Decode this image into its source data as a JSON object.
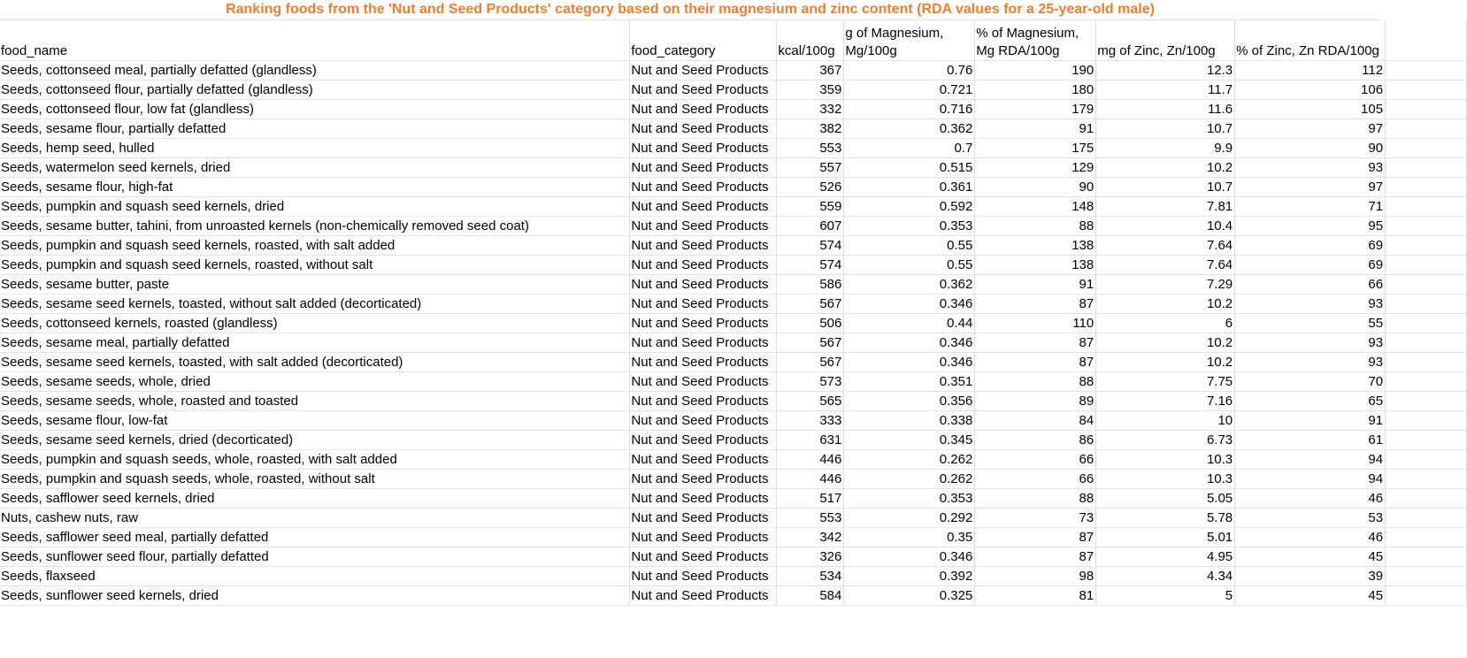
{
  "title": "Ranking foods from the 'Nut and Seed Products' category based on their magnesium and zinc content (RDA values for a 25-year-old male)",
  "headers": [
    "food_name",
    "food_category",
    "kcal/100g",
    "g of Magnesium, Mg/100g",
    "% of Magnesium, Mg RDA/100g",
    "mg of Zinc, Zn/100g",
    "% of Zinc, Zn RDA/100g"
  ],
  "rows": [
    [
      "Seeds, cottonseed meal, partially defatted (glandless)",
      "Nut and Seed Products",
      "367",
      "0.76",
      "190",
      "12.3",
      "112"
    ],
    [
      "Seeds, cottonseed flour, partially defatted (glandless)",
      "Nut and Seed Products",
      "359",
      "0.721",
      "180",
      "11.7",
      "106"
    ],
    [
      "Seeds, cottonseed flour, low fat (glandless)",
      "Nut and Seed Products",
      "332",
      "0.716",
      "179",
      "11.6",
      "105"
    ],
    [
      "Seeds, sesame flour, partially defatted",
      "Nut and Seed Products",
      "382",
      "0.362",
      "91",
      "10.7",
      "97"
    ],
    [
      "Seeds, hemp seed, hulled",
      "Nut and Seed Products",
      "553",
      "0.7",
      "175",
      "9.9",
      "90"
    ],
    [
      "Seeds, watermelon seed kernels, dried",
      "Nut and Seed Products",
      "557",
      "0.515",
      "129",
      "10.2",
      "93"
    ],
    [
      "Seeds, sesame flour, high-fat",
      "Nut and Seed Products",
      "526",
      "0.361",
      "90",
      "10.7",
      "97"
    ],
    [
      "Seeds, pumpkin and squash seed kernels, dried",
      "Nut and Seed Products",
      "559",
      "0.592",
      "148",
      "7.81",
      "71"
    ],
    [
      "Seeds, sesame butter, tahini, from unroasted kernels (non-chemically removed seed coat)",
      "Nut and Seed Products",
      "607",
      "0.353",
      "88",
      "10.4",
      "95"
    ],
    [
      "Seeds, pumpkin and squash seed kernels, roasted, with salt added",
      "Nut and Seed Products",
      "574",
      "0.55",
      "138",
      "7.64",
      "69"
    ],
    [
      "Seeds, pumpkin and squash seed kernels, roasted, without salt",
      "Nut and Seed Products",
      "574",
      "0.55",
      "138",
      "7.64",
      "69"
    ],
    [
      "Seeds, sesame butter, paste",
      "Nut and Seed Products",
      "586",
      "0.362",
      "91",
      "7.29",
      "66"
    ],
    [
      "Seeds, sesame seed kernels, toasted, without salt added (decorticated)",
      "Nut and Seed Products",
      "567",
      "0.346",
      "87",
      "10.2",
      "93"
    ],
    [
      "Seeds, cottonseed kernels, roasted (glandless)",
      "Nut and Seed Products",
      "506",
      "0.44",
      "110",
      "6",
      "55"
    ],
    [
      "Seeds, sesame meal, partially defatted",
      "Nut and Seed Products",
      "567",
      "0.346",
      "87",
      "10.2",
      "93"
    ],
    [
      "Seeds, sesame seed kernels, toasted, with salt added (decorticated)",
      "Nut and Seed Products",
      "567",
      "0.346",
      "87",
      "10.2",
      "93"
    ],
    [
      "Seeds, sesame seeds, whole, dried",
      "Nut and Seed Products",
      "573",
      "0.351",
      "88",
      "7.75",
      "70"
    ],
    [
      "Seeds, sesame seeds, whole, roasted and toasted",
      "Nut and Seed Products",
      "565",
      "0.356",
      "89",
      "7.16",
      "65"
    ],
    [
      "Seeds, sesame flour, low-fat",
      "Nut and Seed Products",
      "333",
      "0.338",
      "84",
      "10",
      "91"
    ],
    [
      "Seeds, sesame seed kernels, dried (decorticated)",
      "Nut and Seed Products",
      "631",
      "0.345",
      "86",
      "6.73",
      "61"
    ],
    [
      "Seeds, pumpkin and squash seeds, whole, roasted, with salt added",
      "Nut and Seed Products",
      "446",
      "0.262",
      "66",
      "10.3",
      "94"
    ],
    [
      "Seeds, pumpkin and squash seeds, whole, roasted, without salt",
      "Nut and Seed Products",
      "446",
      "0.262",
      "66",
      "10.3",
      "94"
    ],
    [
      "Seeds, safflower seed kernels, dried",
      "Nut and Seed Products",
      "517",
      "0.353",
      "88",
      "5.05",
      "46"
    ],
    [
      "Nuts, cashew nuts, raw",
      "Nut and Seed Products",
      "553",
      "0.292",
      "73",
      "5.78",
      "53"
    ],
    [
      "Seeds, safflower seed meal, partially defatted",
      "Nut and Seed Products",
      "342",
      "0.35",
      "87",
      "5.01",
      "46"
    ],
    [
      "Seeds, sunflower seed flour, partially defatted",
      "Nut and Seed Products",
      "326",
      "0.346",
      "87",
      "4.95",
      "45"
    ],
    [
      "Seeds, flaxseed",
      "Nut and Seed Products",
      "534",
      "0.392",
      "98",
      "4.34",
      "39"
    ],
    [
      "Seeds, sunflower seed kernels, dried",
      "Nut and Seed Products",
      "584",
      "0.325",
      "81",
      "5",
      "45"
    ]
  ]
}
